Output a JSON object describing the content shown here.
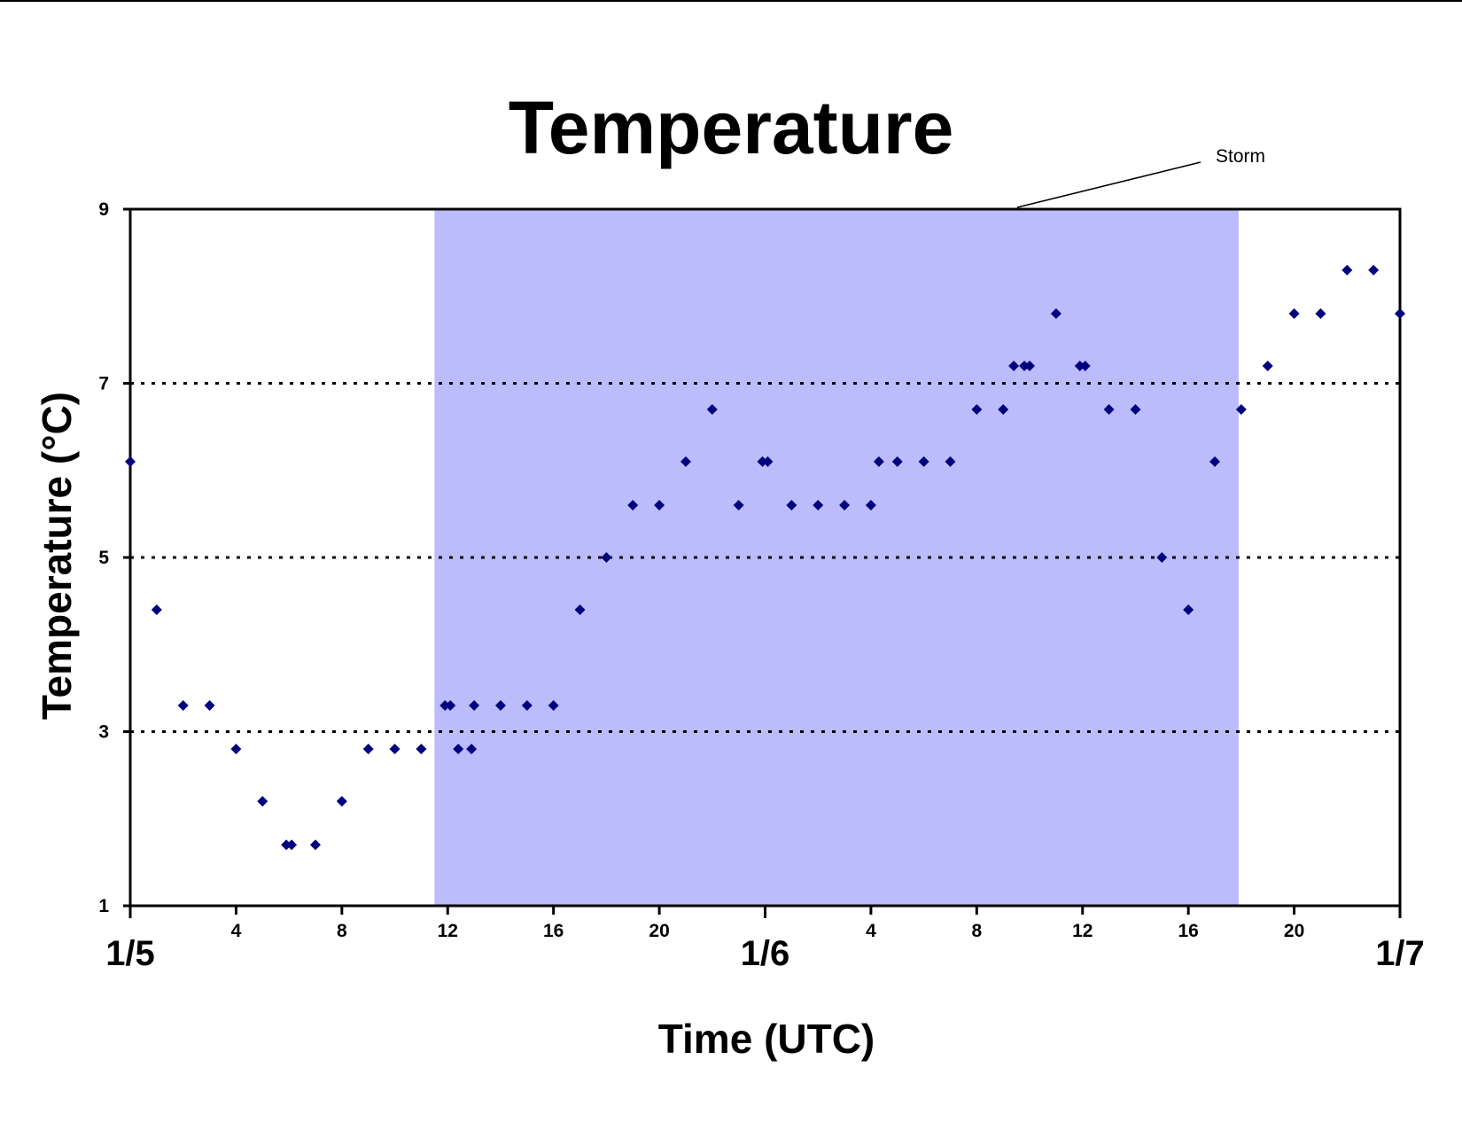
{
  "chart_data": {
    "type": "scatter",
    "title": "Temperature",
    "xlabel": "Time (UTC)",
    "ylabel": "Temperature (°C)",
    "x_unit": "hours from 1/5 00 UTC",
    "xlim": [
      0,
      48
    ],
    "ylim": [
      1,
      9
    ],
    "y_ticks": [
      1,
      3,
      5,
      7,
      9
    ],
    "y_gridlines": [
      3,
      5,
      7
    ],
    "grid": "horizontal dotted at 3, 5, 7",
    "legend": "none",
    "x_hour_ticks": [
      {
        "x": 4,
        "label": "4"
      },
      {
        "x": 8,
        "label": "8"
      },
      {
        "x": 12,
        "label": "12"
      },
      {
        "x": 16,
        "label": "16"
      },
      {
        "x": 20,
        "label": "20"
      },
      {
        "x": 28,
        "label": "4"
      },
      {
        "x": 32,
        "label": "8"
      },
      {
        "x": 36,
        "label": "12"
      },
      {
        "x": 40,
        "label": "16"
      },
      {
        "x": 44,
        "label": "20"
      }
    ],
    "x_day_labels": [
      {
        "x": 0,
        "label": "1/5"
      },
      {
        "x": 24,
        "label": "1/6"
      },
      {
        "x": 48,
        "label": "1/7"
      }
    ],
    "shaded_region": {
      "x_start": 11.5,
      "x_end": 41.9,
      "color": "#bcbcfc",
      "label": "Storm"
    },
    "marker_color": "#00007f",
    "points": [
      {
        "x": 0,
        "y": 6.1
      },
      {
        "x": 1,
        "y": 4.4
      },
      {
        "x": 2,
        "y": 3.3
      },
      {
        "x": 3,
        "y": 3.3
      },
      {
        "x": 4,
        "y": 2.8
      },
      {
        "x": 5,
        "y": 2.2
      },
      {
        "x": 5.9,
        "y": 1.7
      },
      {
        "x": 6.1,
        "y": 1.7
      },
      {
        "x": 7,
        "y": 1.7
      },
      {
        "x": 8,
        "y": 2.2
      },
      {
        "x": 9,
        "y": 2.8
      },
      {
        "x": 10,
        "y": 2.8
      },
      {
        "x": 11,
        "y": 2.8
      },
      {
        "x": 11.9,
        "y": 3.3
      },
      {
        "x": 12.1,
        "y": 3.3
      },
      {
        "x": 12.4,
        "y": 2.8
      },
      {
        "x": 12.9,
        "y": 2.8
      },
      {
        "x": 13,
        "y": 3.3
      },
      {
        "x": 14,
        "y": 3.3
      },
      {
        "x": 15,
        "y": 3.3
      },
      {
        "x": 16,
        "y": 3.3
      },
      {
        "x": 17,
        "y": 4.4
      },
      {
        "x": 18,
        "y": 5.0
      },
      {
        "x": 19,
        "y": 5.6
      },
      {
        "x": 20,
        "y": 5.6
      },
      {
        "x": 21,
        "y": 6.1
      },
      {
        "x": 22,
        "y": 6.7
      },
      {
        "x": 23,
        "y": 5.6
      },
      {
        "x": 23.9,
        "y": 6.1
      },
      {
        "x": 24.1,
        "y": 6.1
      },
      {
        "x": 25,
        "y": 5.6
      },
      {
        "x": 26,
        "y": 5.6
      },
      {
        "x": 27,
        "y": 5.6
      },
      {
        "x": 28,
        "y": 5.6
      },
      {
        "x": 28.3,
        "y": 6.1
      },
      {
        "x": 29,
        "y": 6.1
      },
      {
        "x": 30,
        "y": 6.1
      },
      {
        "x": 31,
        "y": 6.1
      },
      {
        "x": 32,
        "y": 6.7
      },
      {
        "x": 33,
        "y": 6.7
      },
      {
        "x": 33.4,
        "y": 7.2
      },
      {
        "x": 33.8,
        "y": 7.2
      },
      {
        "x": 34,
        "y": 7.2
      },
      {
        "x": 35,
        "y": 7.8
      },
      {
        "x": 35.9,
        "y": 7.2
      },
      {
        "x": 36.1,
        "y": 7.2
      },
      {
        "x": 37,
        "y": 6.7
      },
      {
        "x": 38,
        "y": 6.7
      },
      {
        "x": 39,
        "y": 5.0
      },
      {
        "x": 40,
        "y": 4.4
      },
      {
        "x": 41,
        "y": 6.1
      },
      {
        "x": 42,
        "y": 6.7
      },
      {
        "x": 43,
        "y": 7.2
      },
      {
        "x": 44,
        "y": 7.8
      },
      {
        "x": 45,
        "y": 7.8
      },
      {
        "x": 46,
        "y": 8.3
      },
      {
        "x": 47,
        "y": 8.3
      },
      {
        "x": 48,
        "y": 7.8
      }
    ]
  }
}
